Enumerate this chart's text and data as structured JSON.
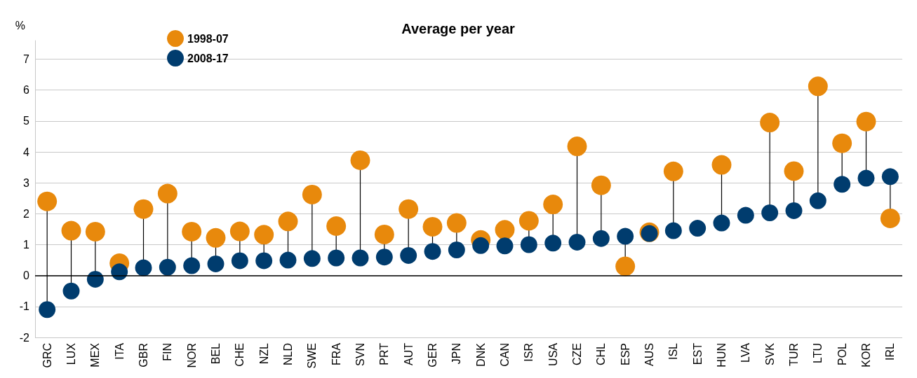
{
  "chart_data": {
    "type": "scatter",
    "title": "Average per year",
    "ylabel": "%",
    "categories": [
      "GRC",
      "LUX",
      "MEX",
      "ITA",
      "GBR",
      "FIN",
      "NOR",
      "BEL",
      "CHE",
      "NZL",
      "NLD",
      "SWE",
      "FRA",
      "SVN",
      "PRT",
      "AUT",
      "GER",
      "JPN",
      "DNK",
      "CAN",
      "ISR",
      "USA",
      "CZE",
      "CHL",
      "ESP",
      "AUS",
      "ISL",
      "EST",
      "HUN",
      "LVA",
      "SVK",
      "TUR",
      "LTU",
      "POL",
      "KOR",
      "IRL"
    ],
    "series": [
      {
        "name": "1998-07",
        "color": "#e8890c",
        "values": [
          2.4,
          1.45,
          1.42,
          0.4,
          2.15,
          2.65,
          1.42,
          1.22,
          1.43,
          1.32,
          1.75,
          2.62,
          1.6,
          3.73,
          1.33,
          2.15,
          1.58,
          1.7,
          1.15,
          1.48,
          1.77,
          2.3,
          4.18,
          2.92,
          0.3,
          1.4,
          3.37,
          null,
          3.58,
          null,
          4.95,
          3.38,
          6.12,
          4.28,
          4.98,
          1.85
        ]
      },
      {
        "name": "2008-17",
        "color": "#003c6e",
        "values": [
          -1.1,
          -0.5,
          -0.12,
          0.12,
          0.25,
          0.27,
          0.32,
          0.38,
          0.48,
          0.48,
          0.5,
          0.55,
          0.57,
          0.57,
          0.6,
          0.65,
          0.78,
          0.83,
          0.97,
          0.96,
          1.0,
          1.05,
          1.08,
          1.2,
          1.27,
          1.36,
          1.45,
          1.53,
          1.7,
          1.95,
          2.03,
          2.1,
          2.42,
          2.95,
          3.15,
          3.2
        ]
      }
    ],
    "ylim": [
      -2,
      7.6
    ],
    "yticks": [
      -2,
      -1,
      0,
      1,
      2,
      3,
      4,
      5,
      6,
      7
    ],
    "grid": "y",
    "legend": "top left",
    "marker": "circle"
  }
}
